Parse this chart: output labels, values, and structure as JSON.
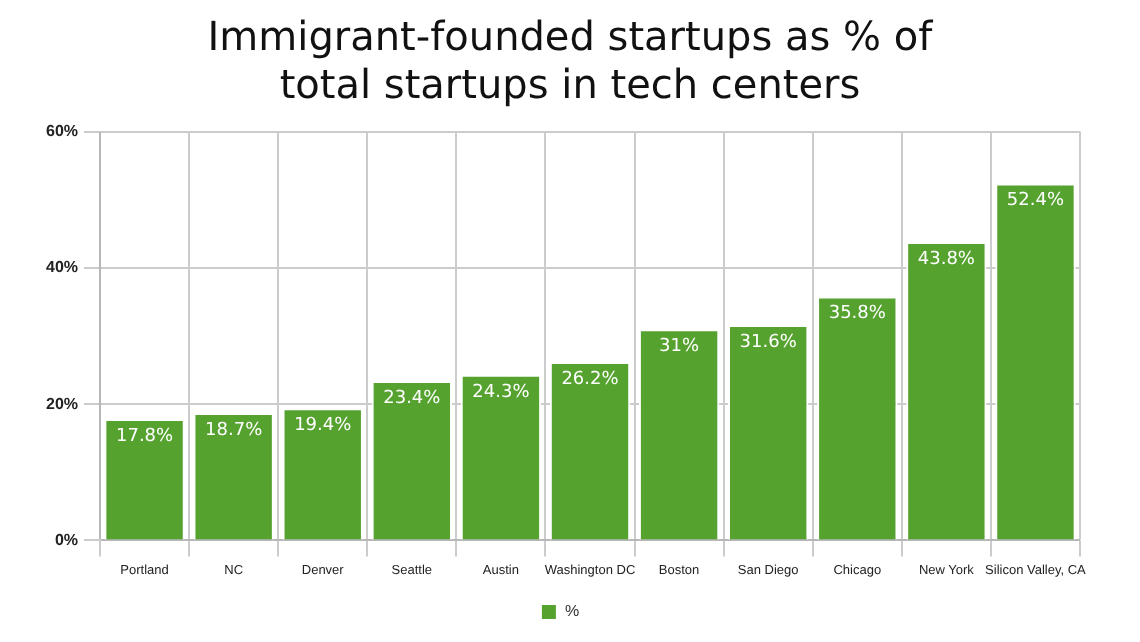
{
  "chart_data": {
    "type": "bar",
    "title": "Immigrant-founded startups as % of\ntotal startups in tech centers",
    "categories": [
      "Portland",
      "NC",
      "Denver",
      "Seattle",
      "Austin",
      "Washington DC",
      "Boston",
      "San Diego",
      "Chicago",
      "New York",
      "Silicon Valley, CA"
    ],
    "series": [
      {
        "name": "%",
        "color": "#55a22f",
        "values": [
          17.8,
          18.7,
          19.4,
          23.4,
          24.3,
          26.2,
          31,
          31.6,
          35.8,
          43.8,
          52.4
        ]
      }
    ],
    "value_labels": [
      "17.8%",
      "18.7%",
      "19.4%",
      "23.4%",
      "24.3%",
      "26.2%",
      "31%",
      "31.6%",
      "35.8%",
      "43.8%",
      "52.4%"
    ],
    "ylim": [
      0,
      60
    ],
    "yticks": [
      {
        "value": 0,
        "label": "0%"
      },
      {
        "value": 20,
        "label": "20%"
      },
      {
        "value": 40,
        "label": "40%"
      },
      {
        "value": 60,
        "label": "60%"
      }
    ],
    "grid": true,
    "legend": "bottom"
  }
}
